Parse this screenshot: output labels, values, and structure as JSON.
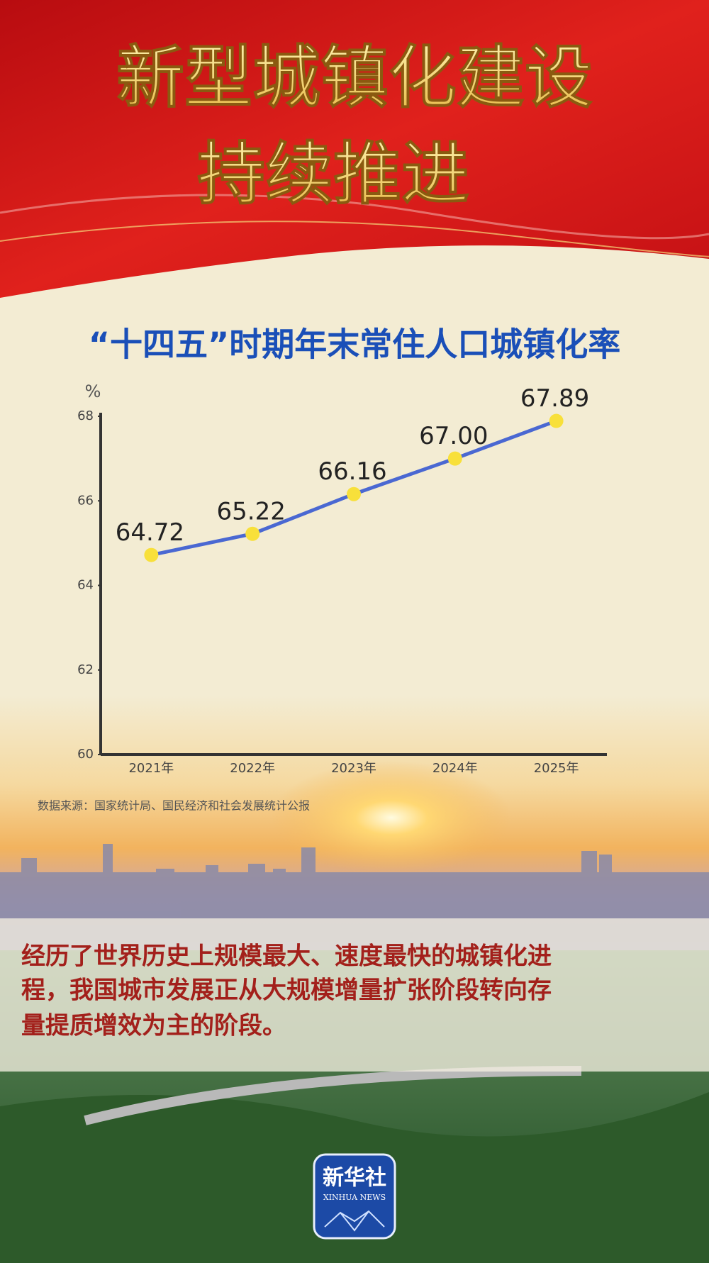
{
  "header": {
    "title_lines": [
      "新型城镇化建设",
      "持续推进"
    ]
  },
  "chart_data": {
    "type": "line",
    "title": "“十四五”时期年末常住人口城镇化率",
    "y_unit": "%",
    "categories": [
      "2021年",
      "2022年",
      "2023年",
      "2024年",
      "2025年"
    ],
    "values": [
      64.72,
      65.22,
      66.16,
      67.0,
      67.89
    ],
    "value_labels": [
      "64.72",
      "65.22",
      "66.16",
      "67.00",
      "67.89"
    ],
    "color": "#4a68d2",
    "marker_color": "#f8e03a",
    "ylim": [
      60,
      68
    ],
    "yticks": [
      60,
      62,
      64,
      66,
      68
    ],
    "grid": false
  },
  "source": "数据来源：国家统计局、国民经济和社会发展统计公报",
  "body_text": [
    "经历了世界历史上规模最大、速度最快的城镇化进",
    "程，我国城市发展正从大规模增量扩张阶段转向存",
    "量提质增效为主的阶段。"
  ],
  "logo": {
    "name": "新华社",
    "subtitle": "XINHUA NEWS"
  }
}
